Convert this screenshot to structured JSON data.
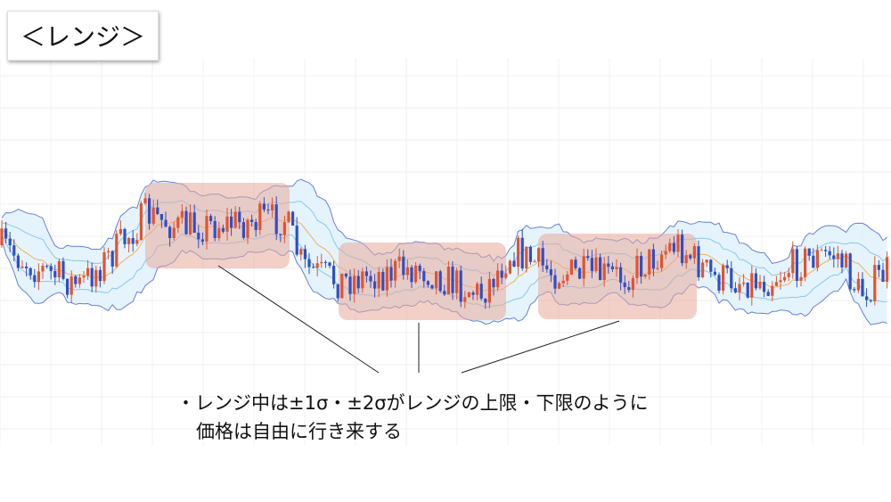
{
  "title": "＜レンジ＞",
  "notes": [
    "・レンジ中は±1σ・±2σがレンジの上限・下限のように",
    "価格は自由に行き来する"
  ]
}
